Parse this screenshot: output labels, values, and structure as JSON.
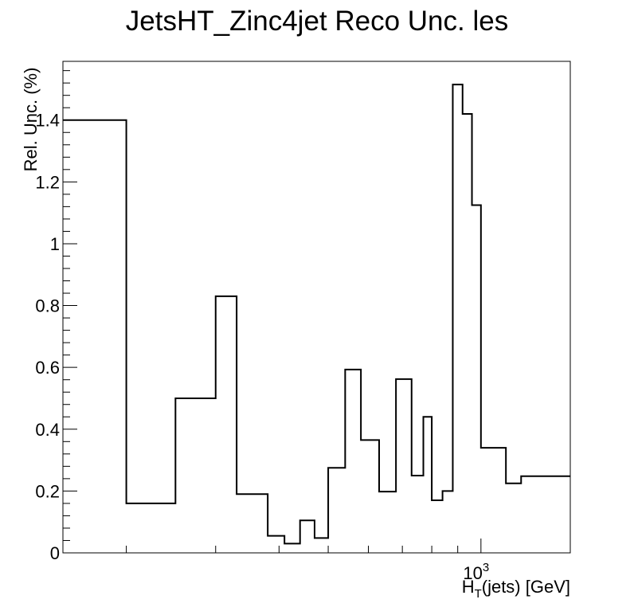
{
  "chart_data": {
    "type": "line",
    "style": "step-histogram",
    "title": "JetsHT_Zinc4jet Reco Unc. les",
    "xlabel": "H_T(jets) [GeV]",
    "xlabel_main": "H",
    "xlabel_sub": "T",
    "xlabel_rest": "(jets) [GeV]",
    "ylabel": "Rel. Unc. (%)",
    "x_scale": "log",
    "x_tick_labels": [
      {
        "value": 1000,
        "base": "10",
        "exp": "3"
      }
    ],
    "y_ticks": [
      0,
      0.2,
      0.4,
      0.6,
      0.8,
      1,
      1.2,
      1.4
    ],
    "y_tick_labels": [
      "0",
      "0.2",
      "0.4",
      "0.6",
      "0.8",
      "1",
      "1.2",
      "1.4"
    ],
    "ylim": [
      0,
      1.59
    ],
    "xlim": [
      150,
      1500
    ],
    "bin_edges": [
      150,
      200,
      250,
      300,
      330,
      380,
      410,
      440,
      470,
      500,
      540,
      580,
      630,
      680,
      730,
      770,
      800,
      840,
      880,
      920,
      960,
      1000,
      1120,
      1200,
      1500
    ],
    "values": [
      1.4,
      0.16,
      0.5,
      0.83,
      0.19,
      0.055,
      0.03,
      0.105,
      0.048,
      0.275,
      0.593,
      0.365,
      0.198,
      0.562,
      0.25,
      0.44,
      0.17,
      0.2,
      1.515,
      1.42,
      1.125,
      0.34,
      0.225,
      0.248
    ],
    "grid": false,
    "legend": "none",
    "line_color": "#000000"
  }
}
